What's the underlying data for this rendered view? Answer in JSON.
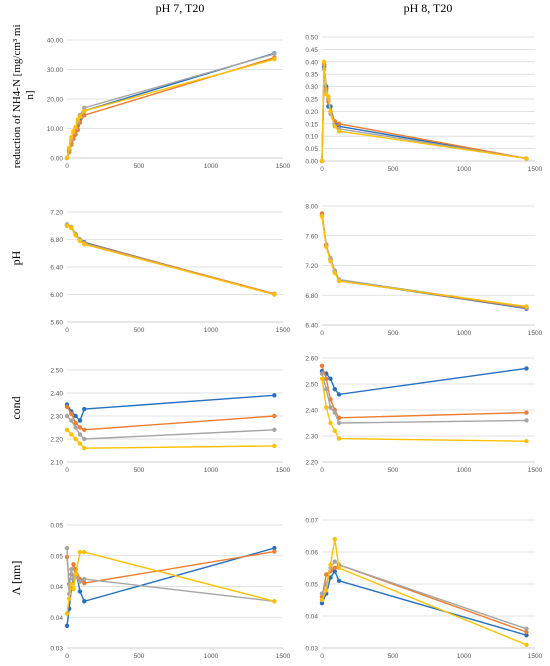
{
  "column_titles": [
    "pH 7, T20",
    "pH 8, T20"
  ],
  "row_labels": [
    "reduction of NH4-N [mg/cm³ min]",
    "pH",
    "cond",
    "Λ [nm]"
  ],
  "colors": [
    "#2471c1",
    "#ee7d31",
    "#a5a5a5",
    "#fec000"
  ],
  "chart_data": [
    {
      "type": "line",
      "panel": "pH 7 - reduction of NH4-N",
      "xlim": [
        0,
        1500
      ],
      "xticks": [
        0,
        500,
        1000,
        1500
      ],
      "ylim": [
        0,
        40
      ],
      "yticks": [
        "0.00",
        "10.00",
        "20.00",
        "30.00",
        "40.00"
      ],
      "series": [
        {
          "color": "#2471c1",
          "x": [
            0,
            15,
            30,
            45,
            60,
            75,
            90,
            120,
            1440
          ],
          "y": [
            0,
            2.5,
            5,
            7.5,
            9.5,
            11,
            13,
            16,
            35.5
          ]
        },
        {
          "color": "#ee7d31",
          "x": [
            0,
            15,
            30,
            45,
            60,
            75,
            90,
            120,
            1440
          ],
          "y": [
            0,
            2,
            4.5,
            6.5,
            8,
            9.5,
            12,
            14.5,
            34
          ]
        },
        {
          "color": "#a5a5a5",
          "x": [
            0,
            15,
            30,
            45,
            60,
            75,
            90,
            120,
            1440
          ],
          "y": [
            0,
            3,
            6,
            8.5,
            10,
            12,
            14.5,
            17,
            35.3
          ]
        },
        {
          "color": "#fec000",
          "x": [
            0,
            15,
            30,
            45,
            60,
            75,
            90,
            120,
            1440
          ],
          "y": [
            0,
            3.5,
            7,
            9,
            10.5,
            13,
            14,
            16,
            33.5
          ]
        }
      ]
    },
    {
      "type": "line",
      "panel": "pH 8 - reduction of NH4-N",
      "xlim": [
        0,
        1500
      ],
      "xticks": [
        0,
        500,
        1000,
        1500
      ],
      "ylim": [
        0,
        0.5
      ],
      "yticks": [
        "0.00",
        "0.05",
        "0.10",
        "0.15",
        "0.20",
        "0.25",
        "0.30",
        "0.35",
        "0.40",
        "0.45",
        "0.50"
      ],
      "series": [
        {
          "color": "#2471c1",
          "x": [
            0,
            15,
            30,
            45,
            60,
            90,
            120,
            1440
          ],
          "y": [
            0,
            0.38,
            0.3,
            0.22,
            0.22,
            0.15,
            0.14,
            0.01
          ]
        },
        {
          "color": "#ee7d31",
          "x": [
            0,
            15,
            30,
            45,
            60,
            90,
            120,
            1440
          ],
          "y": [
            0,
            0.39,
            0.29,
            0.24,
            0.2,
            0.16,
            0.15,
            0.01
          ]
        },
        {
          "color": "#a5a5a5",
          "x": [
            0,
            15,
            30,
            45,
            60,
            90,
            120,
            1440
          ],
          "y": [
            0,
            0.37,
            0.28,
            0.25,
            0.19,
            0.14,
            0.13,
            0.01
          ]
        },
        {
          "color": "#fec000",
          "x": [
            0,
            15,
            30,
            45,
            60,
            90,
            120,
            1440
          ],
          "y": [
            0,
            0.4,
            0.27,
            0.26,
            0.2,
            0.14,
            0.12,
            0.01
          ]
        }
      ]
    },
    {
      "type": "line",
      "panel": "pH 7 - pH",
      "xlim": [
        0,
        1500
      ],
      "xticks": [
        0,
        500,
        1000,
        1500
      ],
      "ylim": [
        5.6,
        7.2
      ],
      "yticks": [
        "5.60",
        "6.00",
        "6.40",
        "6.80",
        "7.20"
      ],
      "series": [
        {
          "color": "#2471c1",
          "x": [
            0,
            30,
            60,
            90,
            120,
            1440
          ],
          "y": [
            7.01,
            6.98,
            6.88,
            6.8,
            6.76,
            6.0
          ]
        },
        {
          "color": "#ee7d31",
          "x": [
            0,
            30,
            60,
            90,
            120,
            1440
          ],
          "y": [
            7.0,
            6.97,
            6.87,
            6.79,
            6.75,
            6.01
          ]
        },
        {
          "color": "#a5a5a5",
          "x": [
            0,
            30,
            60,
            90,
            120,
            1440
          ],
          "y": [
            7.02,
            6.98,
            6.88,
            6.8,
            6.74,
            6.0
          ]
        },
        {
          "color": "#fec000",
          "x": [
            0,
            30,
            60,
            90,
            120,
            1440
          ],
          "y": [
            7.0,
            6.97,
            6.86,
            6.78,
            6.73,
            6.0
          ]
        }
      ]
    },
    {
      "type": "line",
      "panel": "pH 8 - pH",
      "xlim": [
        0,
        1500
      ],
      "xticks": [
        0,
        500,
        1000,
        1500
      ],
      "ylim": [
        6.4,
        8.0
      ],
      "yticks": [
        "6.40",
        "6.80",
        "7.20",
        "7.60",
        "8.00"
      ],
      "series": [
        {
          "color": "#2471c1",
          "x": [
            0,
            30,
            60,
            90,
            120,
            1440
          ],
          "y": [
            7.88,
            7.46,
            7.28,
            7.12,
            7.0,
            6.62
          ]
        },
        {
          "color": "#ee7d31",
          "x": [
            0,
            30,
            60,
            90,
            120,
            1440
          ],
          "y": [
            7.9,
            7.48,
            7.27,
            7.11,
            7.0,
            6.63
          ]
        },
        {
          "color": "#a5a5a5",
          "x": [
            0,
            30,
            60,
            90,
            120,
            1440
          ],
          "y": [
            7.87,
            7.46,
            7.3,
            7.13,
            7.01,
            6.64
          ]
        },
        {
          "color": "#fec000",
          "x": [
            0,
            30,
            60,
            90,
            120,
            1440
          ],
          "y": [
            7.86,
            7.45,
            7.26,
            7.1,
            6.99,
            6.65
          ]
        }
      ]
    },
    {
      "type": "line",
      "panel": "pH 7 - cond",
      "xlim": [
        0,
        1500
      ],
      "xticks": [
        0,
        500,
        1000,
        1500
      ],
      "ylim": [
        2.1,
        2.5
      ],
      "yticks": [
        "2.10",
        "2.20",
        "2.30",
        "2.40",
        "2.50"
      ],
      "series": [
        {
          "color": "#2471c1",
          "x": [
            0,
            30,
            60,
            90,
            120,
            1440
          ],
          "y": [
            2.35,
            2.32,
            2.3,
            2.28,
            2.33,
            2.39
          ]
        },
        {
          "color": "#ee7d31",
          "x": [
            0,
            30,
            60,
            90,
            120,
            1440
          ],
          "y": [
            2.34,
            2.31,
            2.27,
            2.25,
            2.24,
            2.3
          ]
        },
        {
          "color": "#a5a5a5",
          "x": [
            0,
            30,
            60,
            90,
            120,
            1440
          ],
          "y": [
            2.3,
            2.28,
            2.25,
            2.22,
            2.2,
            2.24
          ]
        },
        {
          "color": "#fec000",
          "x": [
            0,
            30,
            60,
            90,
            120,
            1440
          ],
          "y": [
            2.24,
            2.22,
            2.2,
            2.18,
            2.16,
            2.17
          ]
        }
      ]
    },
    {
      "type": "line",
      "panel": "pH 8 - cond",
      "xlim": [
        0,
        1500
      ],
      "xticks": [
        0,
        500,
        1000,
        1500
      ],
      "ylim": [
        2.2,
        2.6
      ],
      "yticks": [
        "2.20",
        "2.30",
        "2.40",
        "2.50",
        "2.60"
      ],
      "series": [
        {
          "color": "#2471c1",
          "x": [
            0,
            30,
            60,
            90,
            120,
            1440
          ],
          "y": [
            2.55,
            2.54,
            2.52,
            2.48,
            2.46,
            2.56
          ]
        },
        {
          "color": "#ee7d31",
          "x": [
            0,
            30,
            60,
            90,
            120,
            1440
          ],
          "y": [
            2.57,
            2.52,
            2.44,
            2.4,
            2.37,
            2.39
          ]
        },
        {
          "color": "#a5a5a5",
          "x": [
            0,
            30,
            60,
            90,
            120,
            1440
          ],
          "y": [
            2.54,
            2.48,
            2.41,
            2.39,
            2.35,
            2.36
          ]
        },
        {
          "color": "#fec000",
          "x": [
            0,
            30,
            60,
            90,
            120,
            1440
          ],
          "y": [
            2.52,
            2.41,
            2.35,
            2.32,
            2.29,
            2.28
          ]
        }
      ]
    },
    {
      "type": "line",
      "panel": "pH 7 - Λ",
      "xlim": [
        0,
        1500
      ],
      "xticks": [
        0,
        500,
        1000,
        1500
      ],
      "ylim": [
        0.03,
        0.055
      ],
      "yticks": [
        "0.03",
        "0.04",
        "0.04",
        "0.05",
        "0.05"
      ],
      "series": [
        {
          "color": "#2471c1",
          "x": [
            0,
            15,
            30,
            45,
            60,
            90,
            120,
            1440
          ],
          "y": [
            0.0345,
            0.038,
            0.042,
            0.044,
            0.046,
            0.0415,
            0.0395,
            0.0503
          ]
        },
        {
          "color": "#ee7d31",
          "x": [
            0,
            15,
            30,
            45,
            60,
            90,
            120,
            1440
          ],
          "y": [
            0.0485,
            0.043,
            0.045,
            0.047,
            0.046,
            0.044,
            0.0432,
            0.0496
          ]
        },
        {
          "color": "#a5a5a5",
          "x": [
            0,
            15,
            30,
            45,
            60,
            90,
            120,
            1440
          ],
          "y": [
            0.0503,
            0.041,
            0.046,
            0.044,
            0.0445,
            0.0435,
            0.044,
            0.0395
          ]
        },
        {
          "color": "#fec000",
          "x": [
            0,
            15,
            30,
            45,
            60,
            90,
            120,
            1440
          ],
          "y": [
            0.037,
            0.04,
            0.043,
            0.042,
            0.045,
            0.0495,
            0.0495,
            0.0395
          ]
        }
      ]
    },
    {
      "type": "line",
      "panel": "pH 8 - Λ",
      "xlim": [
        0,
        1500
      ],
      "xticks": [
        0,
        500,
        1000,
        1500
      ],
      "ylim": [
        0.03,
        0.07
      ],
      "yticks": [
        "0.03",
        "0.04",
        "0.05",
        "0.06",
        "0.07"
      ],
      "series": [
        {
          "color": "#2471c1",
          "x": [
            0,
            30,
            60,
            90,
            120,
            1440
          ],
          "y": [
            0.044,
            0.047,
            0.052,
            0.054,
            0.051,
            0.034
          ]
        },
        {
          "color": "#ee7d31",
          "x": [
            0,
            30,
            60,
            90,
            120,
            1440
          ],
          "y": [
            0.046,
            0.053,
            0.054,
            0.055,
            0.056,
            0.035
          ]
        },
        {
          "color": "#a5a5a5",
          "x": [
            0,
            30,
            60,
            90,
            120,
            1440
          ],
          "y": [
            0.047,
            0.05,
            0.055,
            0.057,
            0.056,
            0.036
          ]
        },
        {
          "color": "#fec000",
          "x": [
            0,
            30,
            60,
            90,
            120,
            1440
          ],
          "y": [
            0.045,
            0.048,
            0.056,
            0.064,
            0.055,
            0.031
          ]
        }
      ]
    }
  ]
}
